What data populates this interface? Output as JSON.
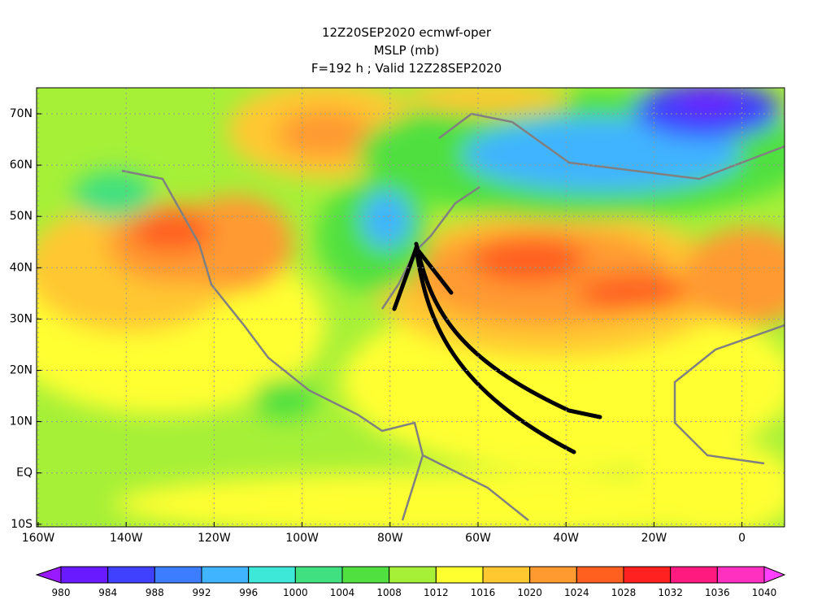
{
  "header": {
    "lines": [
      "12Z20SEP2020 ecmwf-oper",
      "MSLP (mb)",
      "F=192 h ; Valid 12Z28SEP2020"
    ]
  },
  "map": {
    "lat_labels": [
      "70N",
      "60N",
      "50N",
      "40N",
      "30N",
      "20N",
      "10N",
      "EQ",
      "10S"
    ],
    "lon_labels": [
      "160W",
      "140W",
      "120W",
      "100W",
      "80W",
      "60W",
      "40W",
      "20W",
      "0"
    ]
  },
  "colorbar": {
    "levels": [
      980,
      984,
      988,
      992,
      996,
      1000,
      1004,
      1008,
      1012,
      1016,
      1020,
      1024,
      1028,
      1032,
      1036,
      1040
    ],
    "colors": [
      "#9a1aff",
      "#6a1aff",
      "#4040ff",
      "#3c7dff",
      "#40b4ff",
      "#3de8d8",
      "#40e080",
      "#50e040",
      "#a6f038",
      "#ffff30",
      "#ffc830",
      "#ff9a30",
      "#ff6020",
      "#ff2020",
      "#ff1a80",
      "#ff30c0",
      "#ff40ff"
    ]
  }
}
